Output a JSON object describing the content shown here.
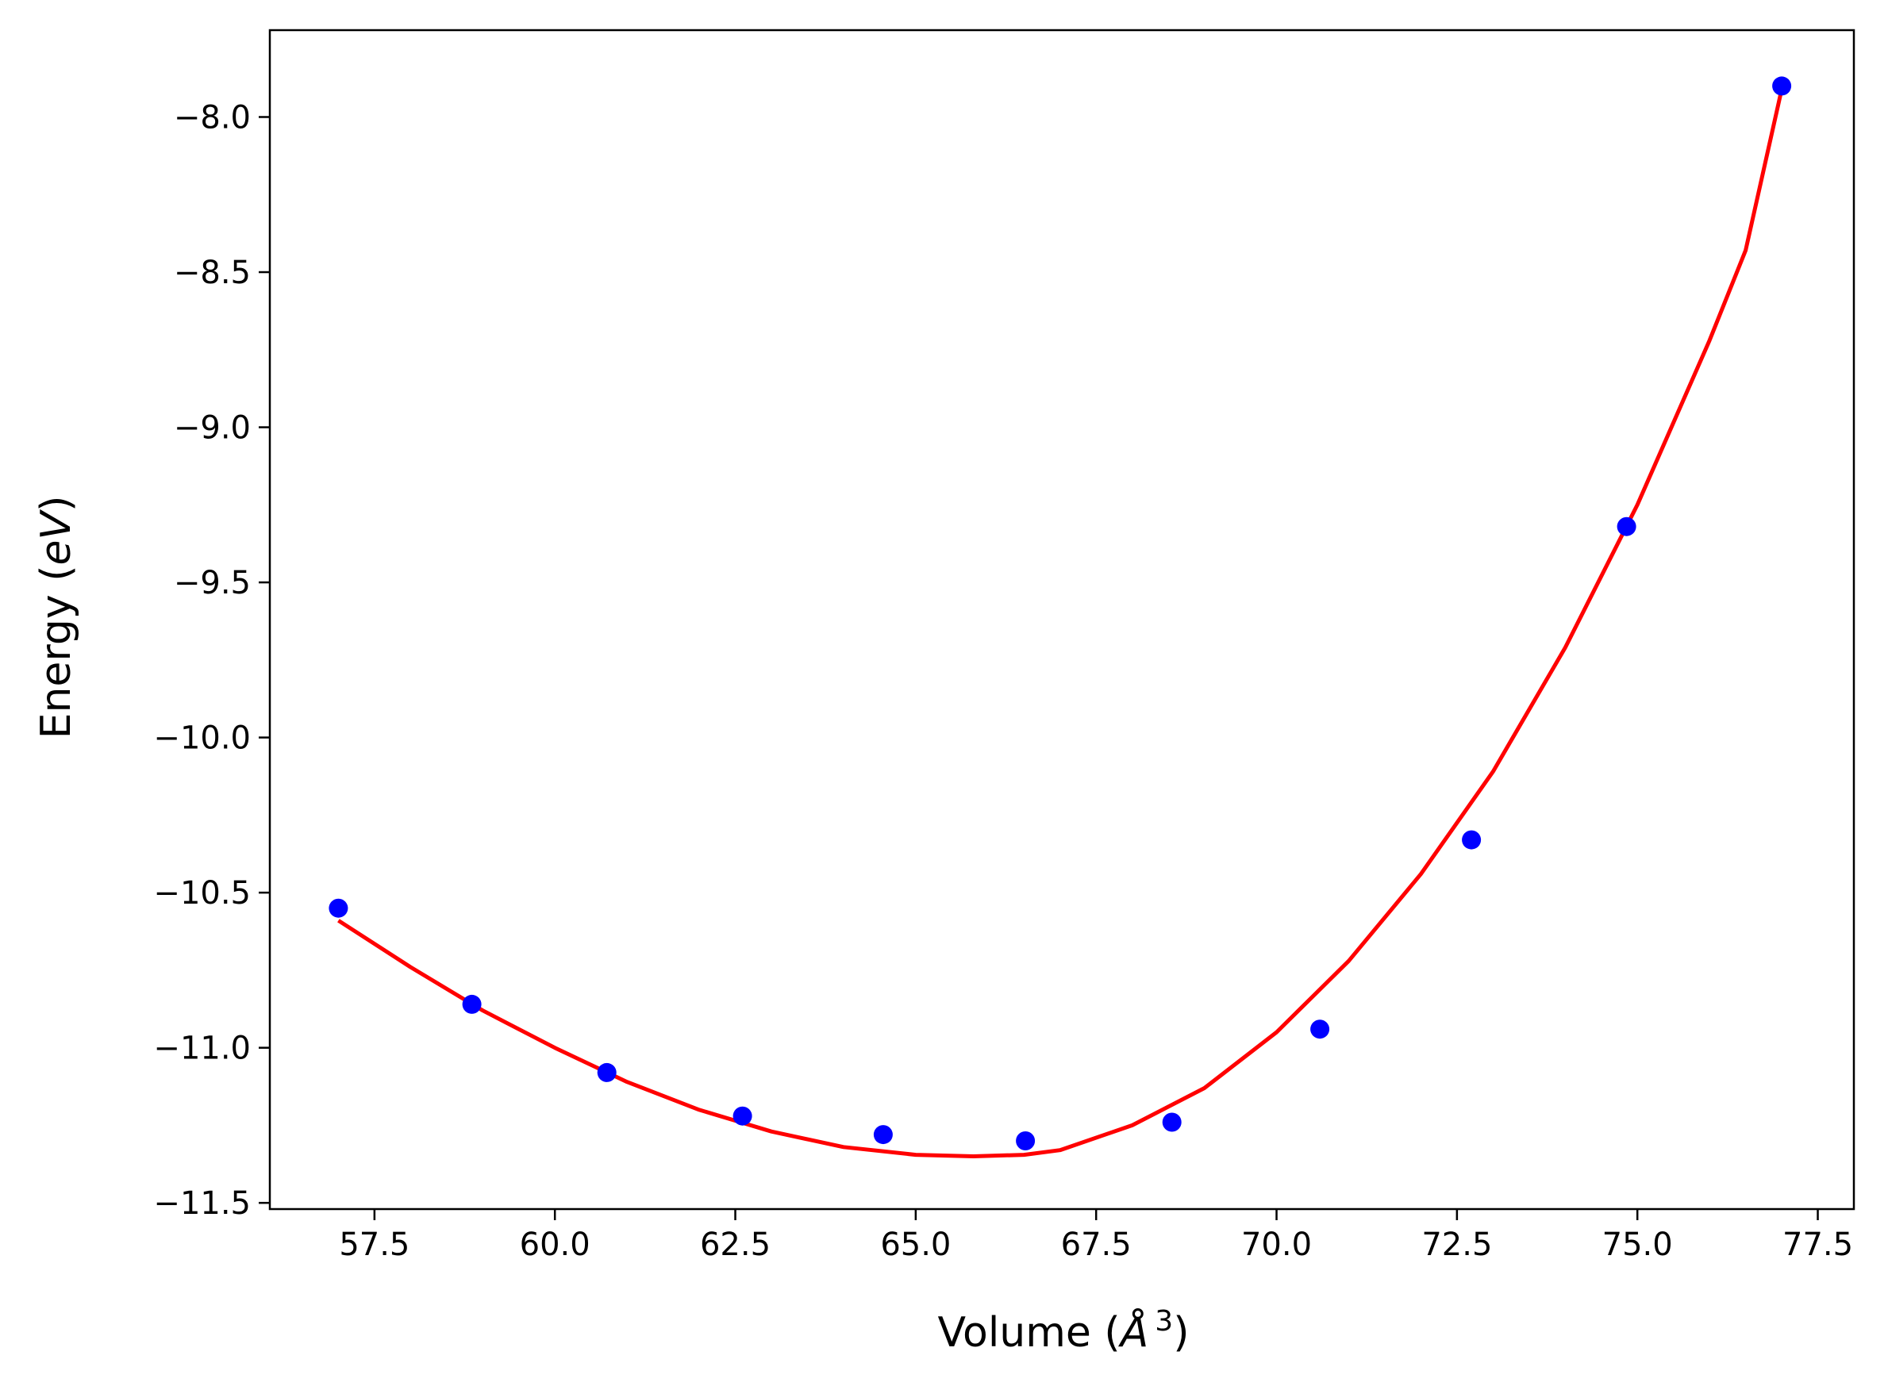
{
  "chart_data": {
    "type": "scatter",
    "xlabel_parts": [
      "Volume (",
      "Å",
      "3",
      ")"
    ],
    "ylabel_parts": [
      "Energy (",
      "eV",
      ")"
    ],
    "xlim": [
      56.05,
      78.0
    ],
    "ylim": [
      -11.52,
      -7.72
    ],
    "x_ticks": [
      57.5,
      60.0,
      62.5,
      65.0,
      67.5,
      70.0,
      72.5,
      75.0,
      77.5
    ],
    "x_tick_labels": [
      "57.5",
      "60.0",
      "62.5",
      "65.0",
      "67.5",
      "70.0",
      "72.5",
      "75.0",
      "77.5"
    ],
    "y_ticks": [
      -8.0,
      -8.5,
      -9.0,
      -9.5,
      -10.0,
      -10.5,
      -11.0,
      -11.5
    ],
    "y_tick_labels": [
      "−8.0",
      "−8.5",
      "−9.0",
      "−9.5",
      "−10.0",
      "−10.5",
      "−11.0",
      "−11.5"
    ],
    "grid": false,
    "series": [
      {
        "kind": "points",
        "color": "#0000ff",
        "x": [
          57.0,
          58.85,
          60.72,
          62.6,
          64.55,
          66.52,
          68.55,
          70.6,
          72.7,
          74.85,
          77.0
        ],
        "y": [
          -10.55,
          -10.86,
          -11.08,
          -11.22,
          -11.28,
          -11.3,
          -11.24,
          -10.94,
          -10.33,
          -9.32,
          -7.9
        ]
      },
      {
        "kind": "fit-curve",
        "color": "#ff0000",
        "x": [
          57.0,
          58.0,
          59.0,
          60.0,
          61.0,
          62.0,
          63.0,
          64.0,
          65.0,
          65.8,
          66.5,
          67.0,
          68.0,
          69.0,
          70.0,
          71.0,
          72.0,
          73.0,
          74.0,
          75.0,
          76.0,
          76.5,
          77.0
        ],
        "y": [
          -10.59,
          -10.74,
          -10.88,
          -11.0,
          -11.11,
          -11.2,
          -11.27,
          -11.32,
          -11.345,
          -11.35,
          -11.345,
          -11.33,
          -11.25,
          -11.13,
          -10.95,
          -10.72,
          -10.44,
          -10.11,
          -9.71,
          -9.25,
          -8.72,
          -8.43,
          -7.91
        ]
      }
    ]
  }
}
